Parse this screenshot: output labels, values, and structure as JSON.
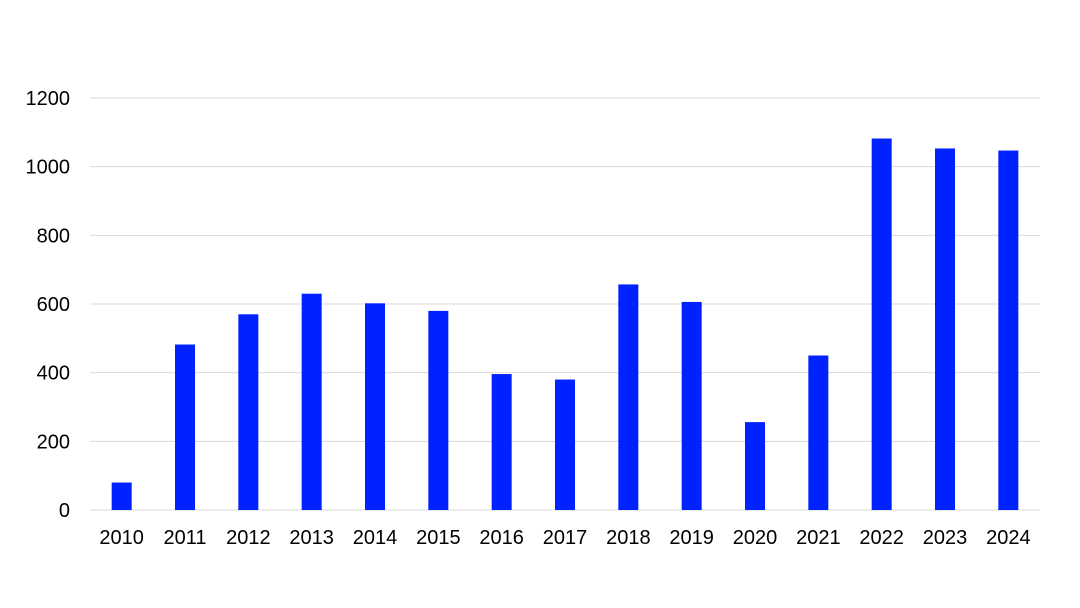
{
  "chart_data": {
    "type": "bar",
    "title": "",
    "xlabel": "",
    "ylabel": "",
    "categories": [
      "2010",
      "2011",
      "2012",
      "2013",
      "2014",
      "2015",
      "2016",
      "2017",
      "2018",
      "2019",
      "2020",
      "2021",
      "2022",
      "2023",
      "2024"
    ],
    "values": [
      80,
      482,
      570,
      630,
      602,
      580,
      396,
      380,
      657,
      606,
      256,
      450,
      1082,
      1053,
      1047
    ],
    "ylim": [
      0,
      1200
    ],
    "yticks": [
      "0",
      "200",
      "400",
      "600",
      "800",
      "1000",
      "1200"
    ],
    "grid": true,
    "legend": "none",
    "bar_color": "#0022ff",
    "grid_color": "#d9d9d9"
  }
}
